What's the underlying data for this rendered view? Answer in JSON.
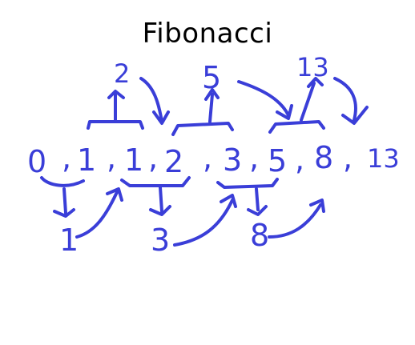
{
  "title": "Fibonacci",
  "ink_color": "#3a3ed8",
  "sequence": [
    "0",
    "1",
    "1",
    "2",
    "3",
    "5",
    "8",
    "13"
  ],
  "separators": [
    ",",
    ",",
    ",",
    ",",
    ",",
    ",",
    ","
  ],
  "sums_above": [
    "2",
    "5",
    "13"
  ],
  "sums_below": [
    "1",
    "3",
    "8"
  ]
}
